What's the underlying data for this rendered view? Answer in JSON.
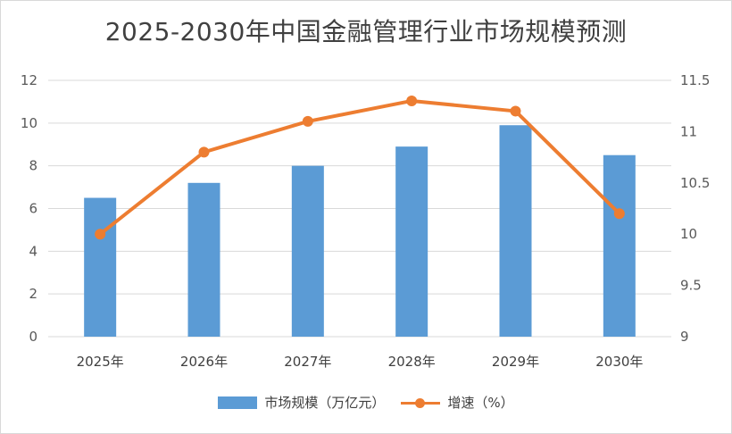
{
  "chart_data": {
    "type": "bar",
    "title": "2025-2030年中国金融管理行业市场规模预测",
    "categories": [
      "2025年",
      "2026年",
      "2027年",
      "2028年",
      "2029年",
      "2030年"
    ],
    "series": [
      {
        "name": "市场规模（万亿元）",
        "type": "bar",
        "axis": "left",
        "color": "#5b9bd5",
        "values": [
          6.5,
          7.2,
          8.0,
          8.9,
          9.9,
          8.5
        ]
      },
      {
        "name": "增速（%）",
        "type": "line",
        "axis": "right",
        "color": "#ed7d31",
        "values": [
          10.0,
          10.8,
          11.1,
          11.3,
          11.2,
          10.2
        ]
      }
    ],
    "y_left": {
      "ylim": [
        0,
        12
      ],
      "ticks": [
        "0",
        "2",
        "4",
        "6",
        "8",
        "10",
        "12"
      ]
    },
    "y_right": {
      "ylim": [
        9,
        11.5
      ],
      "ticks": [
        "9",
        "9.5",
        "10",
        "10.5",
        "11",
        "11.5"
      ]
    },
    "grid": true,
    "legend_position": "bottom"
  }
}
